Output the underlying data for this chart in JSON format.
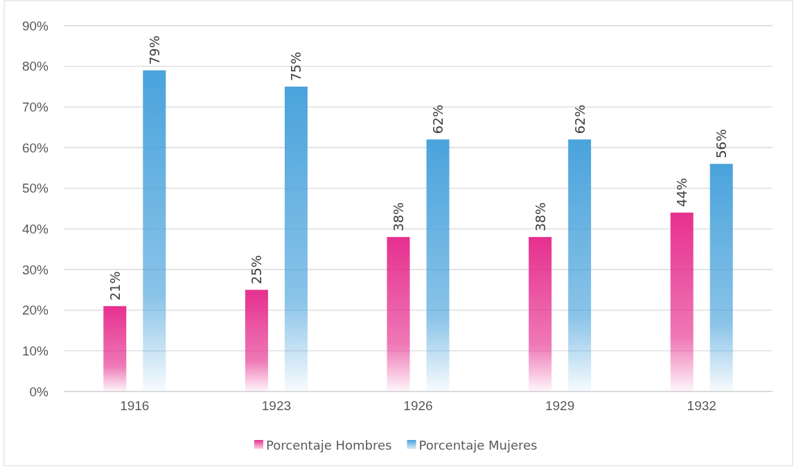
{
  "chart_data": {
    "type": "bar",
    "categories": [
      "1916",
      "1923",
      "1926",
      "1929",
      "1932"
    ],
    "series": [
      {
        "name": "Porcentaje Hombres",
        "color": "#e6308f",
        "values": [
          21,
          25,
          38,
          38,
          44
        ],
        "value_labels": [
          "21%",
          "25%",
          "38%",
          "38%",
          "44%"
        ]
      },
      {
        "name": "Porcentaje Mujeres",
        "color": "#4aa3dc",
        "values": [
          79,
          75,
          62,
          62,
          56
        ],
        "value_labels": [
          "79%",
          "75%",
          "62%",
          "62%",
          "56%"
        ]
      }
    ],
    "ylim": [
      0,
      90
    ],
    "yticks": [
      {
        "value": 0,
        "label": "0%"
      },
      {
        "value": 10,
        "label": "10%"
      },
      {
        "value": 20,
        "label": "20%"
      },
      {
        "value": 30,
        "label": "30%"
      },
      {
        "value": 40,
        "label": "40%"
      },
      {
        "value": 50,
        "label": "50%"
      },
      {
        "value": 60,
        "label": "60%"
      },
      {
        "value": 70,
        "label": "70%"
      },
      {
        "value": 80,
        "label": "80%"
      },
      {
        "value": 90,
        "label": "90%"
      }
    ],
    "grid": "y",
    "legend": "bottom"
  }
}
